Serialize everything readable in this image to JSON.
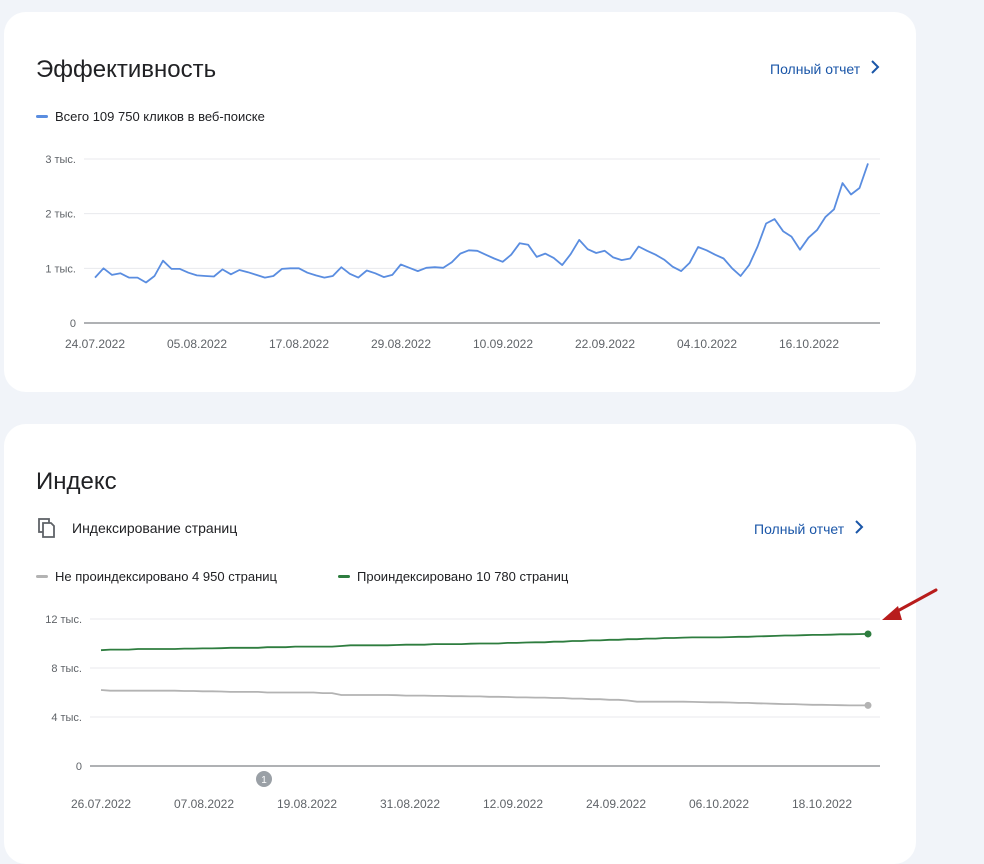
{
  "performance": {
    "title": "Эффективность",
    "full_report_label": "Полный отчет",
    "legend": {
      "label": "Всего 109 750 кликов в веб-поиске",
      "color": "#5a8de0"
    },
    "chart_data": {
      "type": "line",
      "ylim": [
        0,
        3000
      ],
      "y_ticks": [
        {
          "value": 0,
          "label": "0"
        },
        {
          "value": 1000,
          "label": "1 тыс."
        },
        {
          "value": 2000,
          "label": "2 тыс."
        },
        {
          "value": 3000,
          "label": "3 тыс."
        }
      ],
      "x_tick_labels": [
        "24.07.2022",
        "05.08.2022",
        "17.08.2022",
        "29.08.2022",
        "10.09.2022",
        "22.09.2022",
        "04.10.2022",
        "16.10.2022"
      ],
      "series": [
        {
          "color": "#5a8de0",
          "values": [
            830,
            1000,
            880,
            910,
            830,
            830,
            740,
            860,
            1140,
            990,
            990,
            920,
            870,
            860,
            850,
            980,
            890,
            970,
            930,
            880,
            830,
            860,
            990,
            1000,
            1000,
            920,
            870,
            830,
            860,
            1020,
            900,
            830,
            960,
            910,
            840,
            880,
            1070,
            1010,
            950,
            1010,
            1020,
            1010,
            1110,
            1270,
            1330,
            1320,
            1250,
            1180,
            1120,
            1250,
            1460,
            1430,
            1210,
            1270,
            1190,
            1060,
            1260,
            1520,
            1350,
            1280,
            1320,
            1200,
            1150,
            1180,
            1400,
            1320,
            1250,
            1160,
            1030,
            950,
            1100,
            1390,
            1330,
            1250,
            1180,
            1000,
            860,
            1060,
            1400,
            1820,
            1900,
            1680,
            1580,
            1340,
            1560,
            1700,
            1940,
            2080,
            2560,
            2350,
            2470,
            2920
          ]
        }
      ]
    }
  },
  "index": {
    "title": "Индекс",
    "subtitle": "Индексирование страниц",
    "full_report_label": "Полный отчет",
    "legend": [
      {
        "label": "Не проиндексировано 4 950 страниц",
        "color": "#b3b3b3"
      },
      {
        "label": "Проиндексировано 10 780 страниц",
        "color": "#2e7d3f"
      }
    ],
    "annotation_marker": "1",
    "chart_data": {
      "type": "line",
      "ylim": [
        0,
        12000
      ],
      "y_ticks": [
        {
          "value": 0,
          "label": "0"
        },
        {
          "value": 4000,
          "label": "4 тыс."
        },
        {
          "value": 8000,
          "label": "8 тыс."
        },
        {
          "value": 12000,
          "label": "12 тыс."
        }
      ],
      "x_tick_labels": [
        "26.07.2022",
        "07.08.2022",
        "19.08.2022",
        "31.08.2022",
        "12.09.2022",
        "24.09.2022",
        "06.10.2022",
        "18.10.2022"
      ],
      "series": [
        {
          "name": "Проиндексировано",
          "color": "#2e7d3f",
          "values": [
            9450,
            9500,
            9500,
            9500,
            9550,
            9550,
            9550,
            9550,
            9550,
            9580,
            9580,
            9600,
            9600,
            9620,
            9650,
            9650,
            9650,
            9650,
            9700,
            9700,
            9700,
            9750,
            9750,
            9750,
            9750,
            9750,
            9800,
            9850,
            9850,
            9850,
            9850,
            9850,
            9880,
            9900,
            9900,
            9900,
            9950,
            9950,
            9950,
            9950,
            9980,
            10000,
            10000,
            10000,
            10050,
            10050,
            10080,
            10100,
            10100,
            10150,
            10150,
            10200,
            10200,
            10250,
            10250,
            10300,
            10300,
            10350,
            10350,
            10400,
            10400,
            10450,
            10450,
            10480,
            10500,
            10500,
            10500,
            10500,
            10520,
            10550,
            10550,
            10580,
            10600,
            10620,
            10650,
            10650,
            10680,
            10700,
            10700,
            10720,
            10750,
            10750,
            10770,
            10780
          ]
        },
        {
          "name": "Не проиндексировано",
          "color": "#b3b3b3",
          "values": [
            6200,
            6150,
            6150,
            6150,
            6150,
            6150,
            6150,
            6150,
            6150,
            6120,
            6120,
            6100,
            6100,
            6080,
            6050,
            6050,
            6050,
            6050,
            6000,
            6000,
            6000,
            6000,
            6000,
            6000,
            5950,
            5950,
            5800,
            5800,
            5800,
            5800,
            5800,
            5800,
            5780,
            5750,
            5750,
            5750,
            5720,
            5720,
            5700,
            5700,
            5680,
            5680,
            5650,
            5650,
            5630,
            5600,
            5600,
            5580,
            5580,
            5550,
            5550,
            5500,
            5500,
            5450,
            5450,
            5400,
            5400,
            5350,
            5250,
            5250,
            5250,
            5250,
            5250,
            5250,
            5230,
            5220,
            5200,
            5200,
            5180,
            5150,
            5150,
            5120,
            5100,
            5080,
            5050,
            5050,
            5020,
            5000,
            5000,
            4980,
            4960,
            4950,
            4950,
            4950
          ]
        }
      ]
    }
  }
}
